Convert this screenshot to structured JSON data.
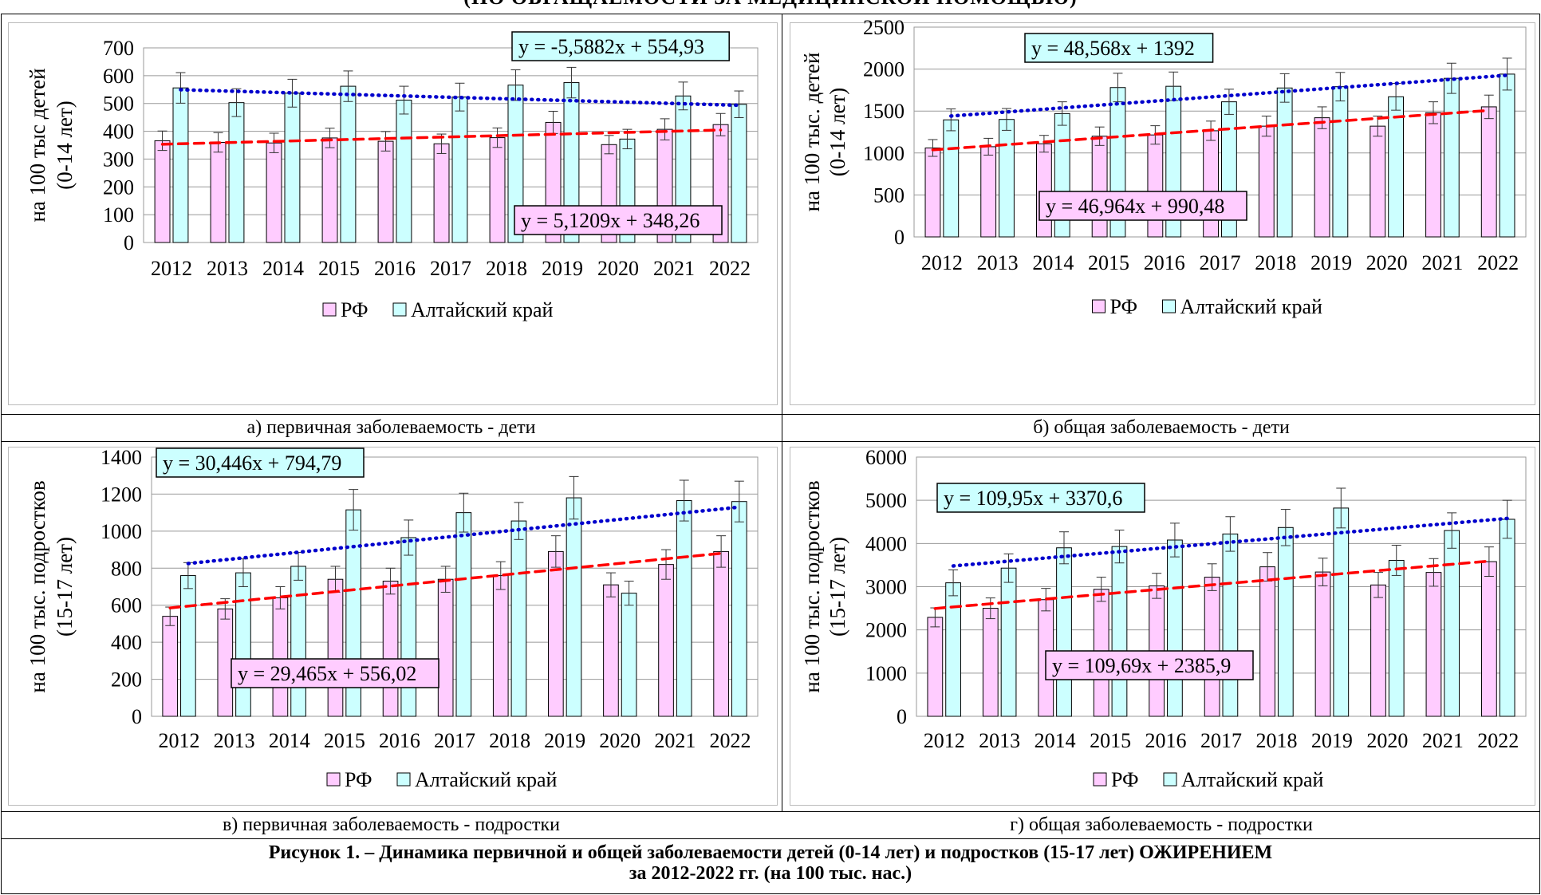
{
  "header": {
    "cut_title": "(ПО ОБРАЩАЕМОСТИ ЗА МЕДИЦИНСКОЙ ПОМОЩЬЮ)"
  },
  "colors": {
    "rf_fill": "#ffccff",
    "ak_fill": "#ccffff",
    "rf_trend": "#ff0000",
    "ak_trend": "#0000cc"
  },
  "chart_data": [
    {
      "id": "a",
      "type": "bar",
      "caption": "а) первичная заболеваемость - дети",
      "ylabel_lines": [
        "на 100 тыс детей",
        "(0-14 лет)"
      ],
      "ylim": [
        0,
        700
      ],
      "ystep": 100,
      "yticks": [
        "0",
        "100",
        "200",
        "300",
        "400",
        "500",
        "600",
        "700"
      ],
      "categories": [
        "2012",
        "2013",
        "2014",
        "2015",
        "2016",
        "2017",
        "2018",
        "2019",
        "2020",
        "2021",
        "2022"
      ],
      "series": [
        {
          "name": "РФ",
          "values": [
            366,
            360,
            358,
            376,
            364,
            355,
            377,
            432,
            352,
            407,
            424
          ],
          "errors": [
            35,
            35,
            35,
            35,
            35,
            35,
            35,
            40,
            33,
            38,
            40
          ]
        },
        {
          "name": "Алтайский край",
          "values": [
            556,
            503,
            537,
            562,
            512,
            523,
            566,
            575,
            372,
            527,
            497
          ],
          "errors": [
            55,
            50,
            50,
            55,
            50,
            50,
            55,
            55,
            35,
            50,
            48
          ]
        }
      ],
      "trend_ak": {
        "label": "y = -5,5882x + 554,93",
        "slope": -5.5882,
        "intercept": 554.93
      },
      "trend_rf": {
        "label": "y = 5,1209x + 348,26",
        "slope": 5.1209,
        "intercept": 348.26
      }
    },
    {
      "id": "b",
      "type": "bar",
      "caption": "б) общая заболеваемость - дети",
      "ylabel_lines": [
        "на  100 тыс. детей",
        "(0-14 лет)"
      ],
      "ylim": [
        0,
        2500
      ],
      "ystep": 500,
      "yticks": [
        "0",
        "500",
        "1000",
        "1500",
        "2000",
        "2500"
      ],
      "categories": [
        "2012",
        "2013",
        "2014",
        "2015",
        "2016",
        "2017",
        "2018",
        "2019",
        "2020",
        "2021",
        "2022"
      ],
      "series": [
        {
          "name": "РФ",
          "values": [
            1060,
            1075,
            1110,
            1200,
            1215,
            1265,
            1320,
            1420,
            1320,
            1480,
            1550
          ],
          "errors": [
            100,
            100,
            100,
            110,
            110,
            115,
            120,
            130,
            120,
            130,
            140
          ]
        },
        {
          "name": "Алтайский край",
          "values": [
            1395,
            1400,
            1470,
            1780,
            1795,
            1610,
            1775,
            1790,
            1670,
            1890,
            1940
          ],
          "errors": [
            130,
            130,
            140,
            170,
            170,
            150,
            170,
            170,
            160,
            180,
            190
          ]
        }
      ],
      "trend_ak": {
        "label": "y = 48,568x + 1392",
        "slope": 48.568,
        "intercept": 1392
      },
      "trend_rf": {
        "label": "y = 46,964x + 990,48",
        "slope": 46.964,
        "intercept": 990.48
      }
    },
    {
      "id": "v",
      "type": "bar",
      "caption": "в) первичная заболеваемость - подростки",
      "ylabel_lines": [
        "на 100 тыс. подростков",
        "(15-17 лет)"
      ],
      "ylim": [
        0,
        1400
      ],
      "ystep": 200,
      "yticks": [
        "0",
        "200",
        "400",
        "600",
        "800",
        "1000",
        "1200",
        "1400"
      ],
      "categories": [
        "2012",
        "2013",
        "2014",
        "2015",
        "2016",
        "2017",
        "2018",
        "2019",
        "2020",
        "2021",
        "2022"
      ],
      "series": [
        {
          "name": "РФ",
          "values": [
            540,
            580,
            640,
            740,
            730,
            740,
            760,
            890,
            710,
            820,
            890
          ],
          "errors": [
            50,
            55,
            60,
            70,
            70,
            70,
            75,
            85,
            65,
            80,
            85
          ]
        },
        {
          "name": "Алтайский край",
          "values": [
            760,
            775,
            810,
            1115,
            965,
            1100,
            1055,
            1180,
            665,
            1165,
            1160
          ],
          "errors": [
            70,
            75,
            75,
            110,
            95,
            105,
            100,
            115,
            65,
            110,
            110
          ]
        }
      ],
      "trend_ak": {
        "label": "y = 30,446x + 794,79",
        "slope": 30.446,
        "intercept": 794.79
      },
      "trend_rf": {
        "label": "y = 29,465x + 556,02",
        "slope": 29.465,
        "intercept": 556.02
      }
    },
    {
      "id": "g",
      "type": "bar",
      "caption": "г) общая заболеваемость - подростки",
      "ylabel_lines": [
        "на 100 тыс. подростков",
        "(15-17 лет)"
      ],
      "ylim": [
        0,
        6000
      ],
      "ystep": 1000,
      "yticks": [
        "0",
        "1000",
        "2000",
        "3000",
        "4000",
        "5000",
        "6000"
      ],
      "categories": [
        "2012",
        "2013",
        "2014",
        "2015",
        "2016",
        "2017",
        "2018",
        "2019",
        "2020",
        "2021",
        "2022"
      ],
      "series": [
        {
          "name": "РФ",
          "values": [
            2290,
            2500,
            2700,
            2940,
            3020,
            3220,
            3460,
            3340,
            3040,
            3330,
            3580
          ],
          "errors": [
            220,
            240,
            260,
            280,
            290,
            310,
            330,
            320,
            290,
            320,
            340
          ]
        },
        {
          "name": "Алтайский край",
          "values": [
            3090,
            3430,
            3900,
            3930,
            4080,
            4220,
            4370,
            4820,
            3610,
            4300,
            4560
          ],
          "errors": [
            300,
            330,
            370,
            380,
            390,
            400,
            420,
            460,
            350,
            410,
            440
          ]
        }
      ],
      "trend_ak": {
        "label": "y = 109,95x + 3370,6",
        "slope": 109.95,
        "intercept": 3370.6
      },
      "trend_rf": {
        "label": "y = 109,69x + 2385,9",
        "slope": 109.69,
        "intercept": 2385.9
      }
    }
  ],
  "figure_caption": {
    "line1": "Рисунок 1. – Динамика первичной и общей заболеваемости детей (0-14 лет) и подростков (15-17 лет) ОЖИРЕНИЕМ",
    "line2": "за 2012-2022 гг. (на 100 тыс. нас.)"
  }
}
